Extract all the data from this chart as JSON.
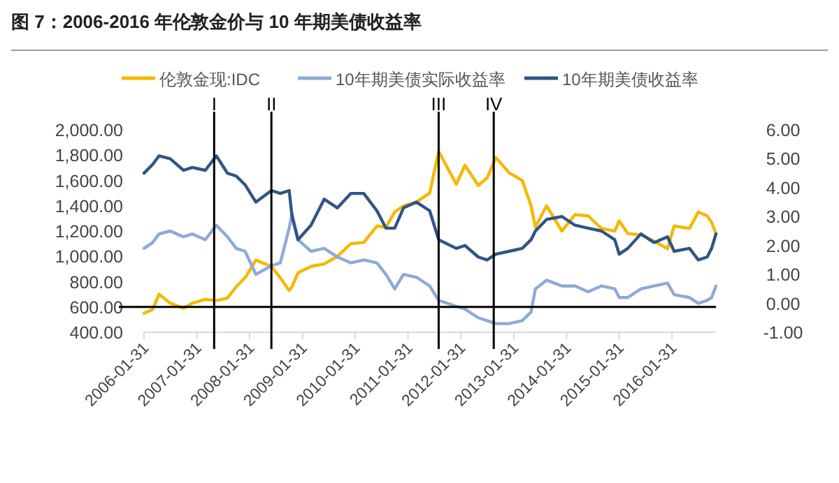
{
  "chart_data": {
    "type": "line",
    "title": "图 7：2006-2016 年伦敦金价与 10 年期美债收益率",
    "x": [
      "2006-01-31",
      "2006-03-31",
      "2006-05-15",
      "2006-07-31",
      "2006-10-31",
      "2006-12-31",
      "2007-03-31",
      "2007-06-15",
      "2007-08-31",
      "2007-10-31",
      "2007-12-31",
      "2008-03-15",
      "2008-06-30",
      "2008-08-31",
      "2008-10-31",
      "2008-11-20",
      "2008-12-31",
      "2009-03-31",
      "2009-06-30",
      "2009-09-30",
      "2009-12-31",
      "2010-03-31",
      "2010-06-30",
      "2010-08-31",
      "2010-10-31",
      "2010-12-31",
      "2011-03-31",
      "2011-06-30",
      "2011-08-31",
      "2011-12-31",
      "2012-02-29",
      "2012-05-31",
      "2012-07-31",
      "2012-09-30",
      "2012-12-31",
      "2013-03-31",
      "2013-05-31",
      "2013-06-30",
      "2013-09-15",
      "2013-12-31",
      "2014-03-31",
      "2014-06-30",
      "2014-09-30",
      "2014-12-31",
      "2015-01-31",
      "2015-03-31",
      "2015-06-30",
      "2015-09-30",
      "2015-12-31",
      "2016-02-15",
      "2016-05-31",
      "2016-07-31",
      "2016-09-30",
      "2016-10-31",
      "2016-11-30"
    ],
    "series": [
      {
        "name": "伦敦金现:IDC",
        "color": "#f5b800",
        "values": [
          550,
          580,
          700,
          630,
          590,
          630,
          660,
          650,
          670,
          760,
          830,
          970,
          920,
          830,
          730,
          760,
          870,
          920,
          940,
          1000,
          1100,
          1110,
          1240,
          1230,
          1350,
          1400,
          1430,
          1500,
          1830,
          1570,
          1720,
          1560,
          1620,
          1780,
          1660,
          1600,
          1400,
          1230,
          1400,
          1200,
          1330,
          1320,
          1220,
          1200,
          1280,
          1180,
          1170,
          1120,
          1060,
          1240,
          1220,
          1350,
          1320,
          1270,
          1180
        ]
      },
      {
        "name": "10年期美债实际收益率",
        "color": "#8eaad6",
        "axis": "y2",
        "values": [
          1.9,
          2.1,
          2.4,
          2.5,
          2.3,
          2.4,
          2.2,
          2.7,
          2.3,
          1.9,
          1.8,
          1.0,
          1.3,
          1.4,
          2.6,
          3.1,
          2.2,
          1.8,
          1.9,
          1.6,
          1.4,
          1.5,
          1.4,
          1.0,
          0.5,
          1.0,
          0.9,
          0.6,
          0.1,
          -0.1,
          -0.2,
          -0.5,
          -0.6,
          -0.7,
          -0.7,
          -0.6,
          -0.3,
          0.5,
          0.8,
          0.6,
          0.6,
          0.4,
          0.6,
          0.5,
          0.2,
          0.2,
          0.5,
          0.6,
          0.7,
          0.3,
          0.2,
          0.0,
          0.1,
          0.2,
          0.6
        ]
      },
      {
        "name": "10年期美债收益率",
        "color": "#2f5587",
        "axis": "y2",
        "values": [
          4.5,
          4.8,
          5.1,
          5.0,
          4.6,
          4.7,
          4.6,
          5.1,
          4.5,
          4.4,
          4.1,
          3.5,
          3.9,
          3.8,
          3.9,
          3.0,
          2.2,
          2.7,
          3.6,
          3.3,
          3.8,
          3.8,
          3.2,
          2.6,
          2.6,
          3.3,
          3.5,
          3.2,
          2.2,
          1.9,
          2.0,
          1.6,
          1.5,
          1.7,
          1.8,
          1.9,
          2.2,
          2.5,
          2.9,
          3.0,
          2.7,
          2.6,
          2.5,
          2.2,
          1.7,
          1.9,
          2.4,
          2.1,
          2.3,
          1.8,
          1.9,
          1.5,
          1.6,
          1.9,
          2.4
        ]
      }
    ],
    "xlim": [
      "2006-01-31",
      "2016-11-30"
    ],
    "xticks": [
      "2006-01-31",
      "2007-01-31",
      "2008-01-31",
      "2009-01-31",
      "2010-01-31",
      "2011-01-31",
      "2012-01-31",
      "2013-01-31",
      "2014-01-31",
      "2015-01-31",
      "2016-01-31"
    ],
    "ylim": [
      400,
      2000
    ],
    "yticks": [
      {
        "value": 400,
        "label": "400.00"
      },
      {
        "value": 600,
        "label": "600.00"
      },
      {
        "value": 800,
        "label": "800.00"
      },
      {
        "value": 1000,
        "label": "1,000.00"
      },
      {
        "value": 1200,
        "label": "1,200.00"
      },
      {
        "value": 1400,
        "label": "1,400.00"
      },
      {
        "value": 1600,
        "label": "1,600.00"
      },
      {
        "value": 1800,
        "label": "1,800.00"
      },
      {
        "value": 2000,
        "label": "2,000.00"
      }
    ],
    "y2lim": [
      -1,
      6
    ],
    "y2ticks": [
      {
        "value": -1,
        "label": "-1.00"
      },
      {
        "value": 0,
        "label": "0.00"
      },
      {
        "value": 1,
        "label": "1.00"
      },
      {
        "value": 2,
        "label": "2.00"
      },
      {
        "value": 3,
        "label": "3.00"
      },
      {
        "value": 4,
        "label": "4.00"
      },
      {
        "value": 5,
        "label": "5.00"
      },
      {
        "value": 6,
        "label": "6.00"
      }
    ],
    "ref_lines": [
      {
        "axis": "x",
        "value": "2007-05-31",
        "label": "I",
        "color": "#000000"
      },
      {
        "axis": "x",
        "value": "2008-06-30",
        "label": "II",
        "color": "#000000"
      },
      {
        "axis": "x",
        "value": "2011-08-31",
        "label": "III",
        "color": "#000000"
      },
      {
        "axis": "x",
        "value": "2012-09-15",
        "label": "IV",
        "color": "#000000"
      },
      {
        "axis": "y",
        "value": 600,
        "color": "#000000"
      }
    ],
    "grid": false,
    "legend": "top",
    "marker": "none",
    "line_style": "solid"
  }
}
